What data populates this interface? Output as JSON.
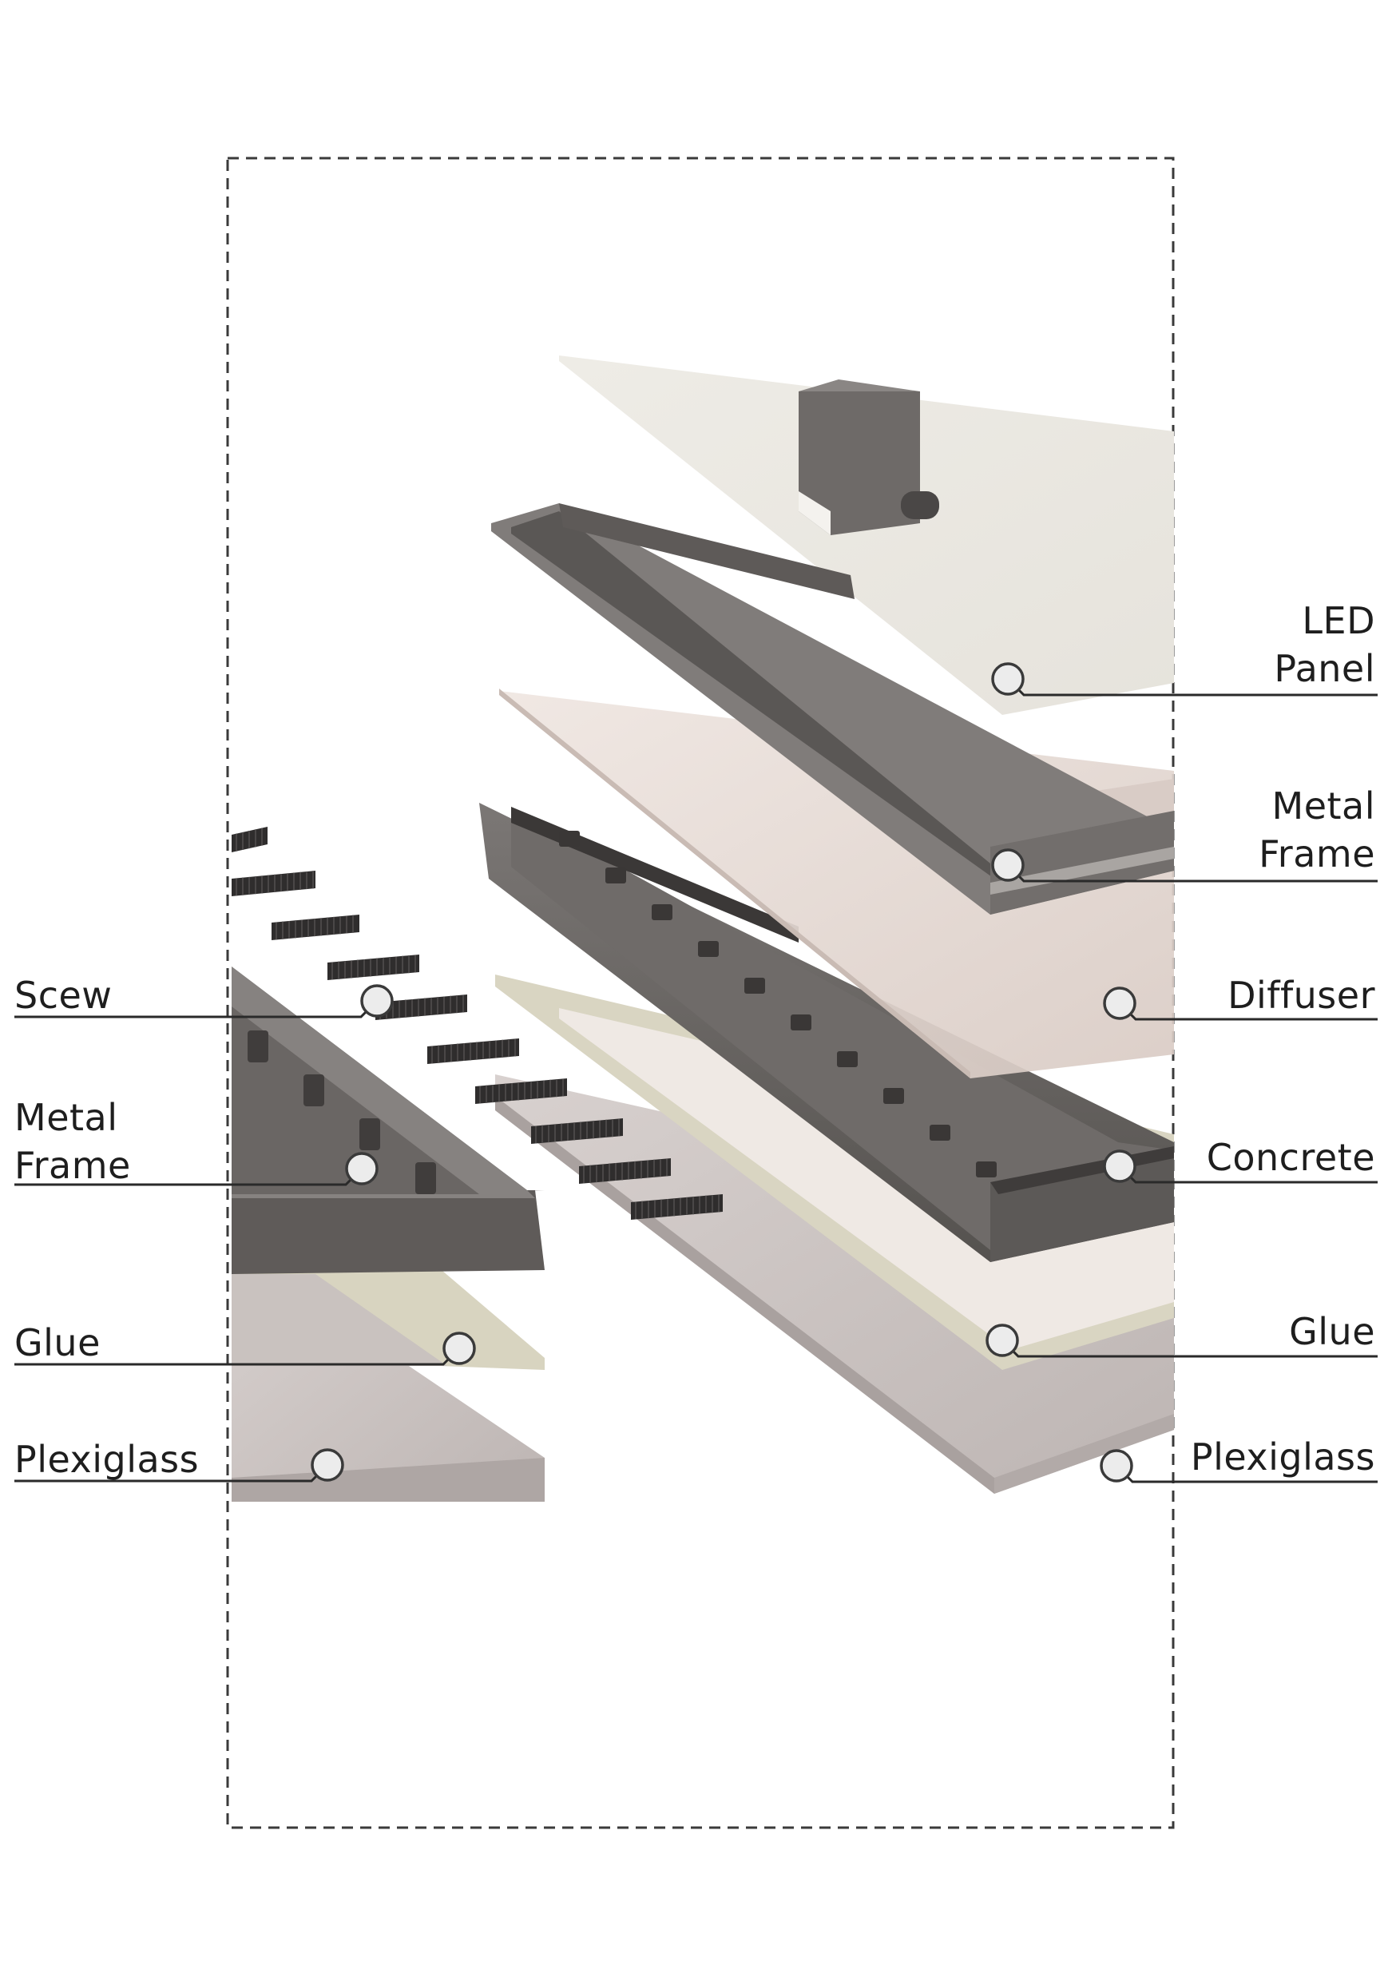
{
  "diagram": {
    "type": "exploded-assembly",
    "colors": {
      "background": "#ffffff",
      "boundary": "#3a3a3a",
      "led_panel": "#ebe9e3",
      "metal": "#6b6866",
      "metal_dark": "#3f3c3b",
      "diffuser": "#e4d8d2",
      "glue": "#d8d4c0",
      "plexiglass": "#c9c3c1",
      "screw": "#2f2d2d",
      "label": "#1e1e1e"
    },
    "labels_right": [
      {
        "id": "led-panel",
        "lines": [
          "LED",
          "Panel"
        ]
      },
      {
        "id": "metal-frame-right",
        "lines": [
          "Metal",
          "Frame"
        ]
      },
      {
        "id": "diffuser",
        "lines": [
          "Diffuser"
        ]
      },
      {
        "id": "concrete",
        "lines": [
          "Concrete"
        ]
      },
      {
        "id": "glue-right",
        "lines": [
          "Glue"
        ]
      },
      {
        "id": "plexiglass-right",
        "lines": [
          "Plexiglass"
        ]
      }
    ],
    "labels_left": [
      {
        "id": "scew",
        "lines": [
          "Scew"
        ]
      },
      {
        "id": "metal-frame-left",
        "lines": [
          "Metal",
          "Frame"
        ]
      },
      {
        "id": "glue-left",
        "lines": [
          "Glue"
        ]
      },
      {
        "id": "plexiglass-left",
        "lines": [
          "Plexiglass"
        ]
      }
    ]
  }
}
